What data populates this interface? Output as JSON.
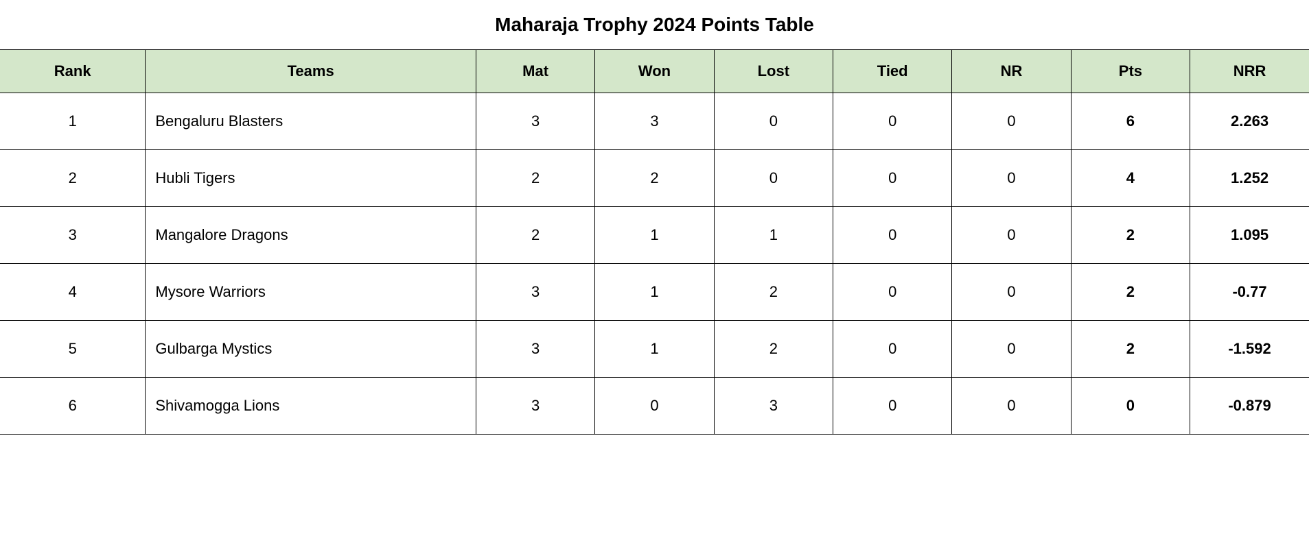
{
  "title": "Maharaja Trophy 2024 Points Table",
  "table": {
    "columns": [
      "Rank",
      "Teams",
      "Mat",
      "Won",
      "Lost",
      "Tied",
      "NR",
      "Pts",
      "NRR"
    ],
    "rows": [
      {
        "rank": "1",
        "team": "Bengaluru Blasters",
        "mat": "3",
        "won": "3",
        "lost": "0",
        "tied": "0",
        "nr": "0",
        "pts": "6",
        "nrr": "2.263"
      },
      {
        "rank": "2",
        "team": "Hubli Tigers",
        "mat": "2",
        "won": "2",
        "lost": "0",
        "tied": "0",
        "nr": "0",
        "pts": "4",
        "nrr": "1.252"
      },
      {
        "rank": "3",
        "team": "Mangalore Dragons",
        "mat": "2",
        "won": "1",
        "lost": "1",
        "tied": "0",
        "nr": "0",
        "pts": "2",
        "nrr": "1.095"
      },
      {
        "rank": "4",
        "team": "Mysore Warriors",
        "mat": "3",
        "won": "1",
        "lost": "2",
        "tied": "0",
        "nr": "0",
        "pts": "2",
        "nrr": "-0.77"
      },
      {
        "rank": "5",
        "team": "Gulbarga Mystics",
        "mat": "3",
        "won": "1",
        "lost": "2",
        "tied": "0",
        "nr": "0",
        "pts": "2",
        "nrr": "-1.592"
      },
      {
        "rank": "6",
        "team": "Shivamogga Lions",
        "mat": "3",
        "won": "0",
        "lost": "3",
        "tied": "0",
        "nr": "0",
        "pts": "0",
        "nrr": "-0.879"
      }
    ],
    "header_bg_color": "#d4e7ca",
    "border_color": "#000000",
    "text_color": "#000000",
    "background_color": "#ffffff",
    "title_fontsize": 28,
    "header_fontsize": 22,
    "cell_fontsize": 22
  }
}
